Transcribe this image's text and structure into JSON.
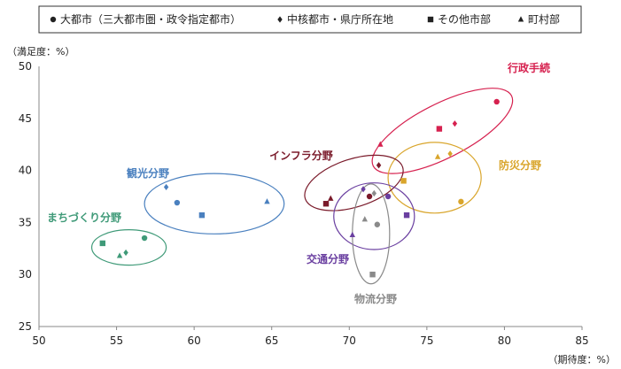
{
  "chart_data": {
    "type": "scatter",
    "legend": {
      "placement": "top",
      "entries": [
        {
          "marker": "circle",
          "label": "大都市（三大都市圏・政令指定都市）"
        },
        {
          "marker": "diamond",
          "label": "中核都市・県庁所在地"
        },
        {
          "marker": "square",
          "label": "その他市部"
        },
        {
          "marker": "triangle",
          "label": "町村部"
        }
      ]
    },
    "ylabel": "（満足度：%）",
    "xlabel": "（期待度：%）",
    "xlim": [
      50,
      85
    ],
    "ylim": [
      25,
      50
    ],
    "xticks": [
      50,
      55,
      60,
      65,
      70,
      75,
      80,
      85
    ],
    "yticks": [
      25,
      30,
      35,
      40,
      45,
      50
    ],
    "grid": false,
    "groups": [
      {
        "name": "行政手続",
        "color": "#d6214f",
        "points": [
          {
            "marker": "circle",
            "x": 79.5,
            "y": 46.6
          },
          {
            "marker": "diamond",
            "x": 76.8,
            "y": 44.5
          },
          {
            "marker": "square",
            "x": 75.8,
            "y": 44.0
          },
          {
            "marker": "triangle",
            "x": 72.0,
            "y": 42.5
          }
        ],
        "ellipse": {
          "cx": 76.0,
          "cy": 43.8,
          "rx": 5.0,
          "ry": 2.6,
          "angle": -27
        }
      },
      {
        "name": "防災分野",
        "color": "#d9a52b",
        "points": [
          {
            "marker": "circle",
            "x": 77.2,
            "y": 37.0
          },
          {
            "marker": "diamond",
            "x": 76.5,
            "y": 41.6
          },
          {
            "marker": "square",
            "x": 73.5,
            "y": 39.0
          },
          {
            "marker": "triangle",
            "x": 75.7,
            "y": 41.3
          }
        ],
        "ellipse": {
          "cx": 75.5,
          "cy": 39.3,
          "rx": 3.0,
          "ry": 3.4,
          "angle": 0
        }
      },
      {
        "name": "インフラ分野",
        "color": "#7a1a2a",
        "points": [
          {
            "marker": "circle",
            "x": 71.3,
            "y": 37.5
          },
          {
            "marker": "diamond",
            "x": 71.9,
            "y": 40.5
          },
          {
            "marker": "square",
            "x": 68.5,
            "y": 36.8
          },
          {
            "marker": "triangle",
            "x": 68.8,
            "y": 37.3
          }
        ],
        "ellipse": {
          "cx": 70.3,
          "cy": 38.8,
          "rx": 3.3,
          "ry": 2.3,
          "angle": -18
        }
      },
      {
        "name": "観光分野",
        "color": "#4a80bf",
        "points": [
          {
            "marker": "circle",
            "x": 58.9,
            "y": 36.9
          },
          {
            "marker": "diamond",
            "x": 58.2,
            "y": 38.4
          },
          {
            "marker": "square",
            "x": 60.5,
            "y": 35.7
          },
          {
            "marker": "triangle",
            "x": 64.7,
            "y": 37.0
          }
        ],
        "ellipse": {
          "cx": 61.3,
          "cy": 36.8,
          "rx": 4.5,
          "ry": 2.9,
          "angle": 0
        }
      },
      {
        "name": "まちづくり分野",
        "color": "#3f9a78",
        "points": [
          {
            "marker": "circle",
            "x": 56.8,
            "y": 33.5
          },
          {
            "marker": "diamond",
            "x": 55.6,
            "y": 32.1
          },
          {
            "marker": "square",
            "x": 54.1,
            "y": 33.0
          },
          {
            "marker": "triangle",
            "x": 55.2,
            "y": 31.8
          }
        ],
        "ellipse": {
          "cx": 55.8,
          "cy": 32.6,
          "rx": 2.4,
          "ry": 1.7,
          "angle": 0
        }
      },
      {
        "name": "交通分野",
        "color": "#6a3fa0",
        "points": [
          {
            "marker": "circle",
            "x": 72.5,
            "y": 37.5
          },
          {
            "marker": "diamond",
            "x": 70.9,
            "y": 38.2
          },
          {
            "marker": "square",
            "x": 73.7,
            "y": 35.7
          },
          {
            "marker": "triangle",
            "x": 70.2,
            "y": 33.8
          }
        ],
        "ellipse": {
          "cx": 71.6,
          "cy": 35.6,
          "rx": 2.6,
          "ry": 3.2,
          "angle": 0
        }
      },
      {
        "name": "物流分野",
        "color": "#8a8a8a",
        "points": [
          {
            "marker": "circle",
            "x": 71.8,
            "y": 34.8
          },
          {
            "marker": "diamond",
            "x": 71.6,
            "y": 37.8
          },
          {
            "marker": "square",
            "x": 71.5,
            "y": 30.0
          },
          {
            "marker": "triangle",
            "x": 71.0,
            "y": 35.3
          }
        ],
        "ellipse": {
          "cx": 71.4,
          "cy": 33.9,
          "rx": 1.2,
          "ry": 4.8,
          "angle": 0
        }
      }
    ]
  }
}
